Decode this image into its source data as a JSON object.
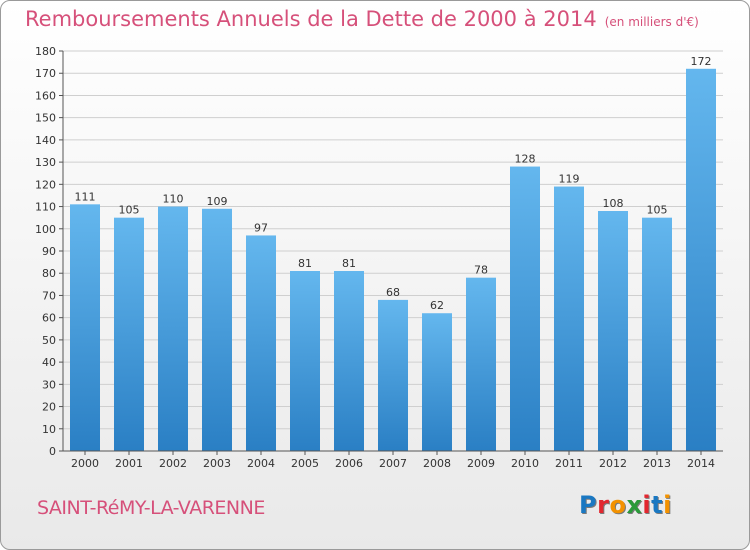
{
  "title": "Remboursements Annuels de la Dette de 2000 à 2014",
  "unit_note": "(en milliers d'€)",
  "commune": "SAINT-RéMY-LA-VARENNE",
  "logo": {
    "text": "Proxiti",
    "letter_colors": [
      "#1a78c2",
      "#e2272f",
      "#f39200",
      "#2a9a3a",
      "#e2272f",
      "#1a78c2",
      "#f39200"
    ]
  },
  "colors": {
    "bar_top": "#64b7ee",
    "bar_bottom": "#2a7fc4",
    "grid": "#cfcfcf",
    "axis": "#555555",
    "title": "#d6507a"
  },
  "chart_data": {
    "type": "bar",
    "categories": [
      "2000",
      "2001",
      "2002",
      "2003",
      "2004",
      "2005",
      "2006",
      "2007",
      "2008",
      "2009",
      "2010",
      "2011",
      "2012",
      "2013",
      "2014"
    ],
    "values": [
      111,
      105,
      110,
      109,
      97,
      81,
      81,
      68,
      62,
      78,
      128,
      119,
      108,
      105,
      172
    ],
    "ylim": [
      0,
      180
    ],
    "yticks": [
      0,
      10,
      20,
      30,
      40,
      50,
      60,
      70,
      80,
      90,
      100,
      110,
      120,
      130,
      140,
      150,
      160,
      170,
      180
    ],
    "grid": true,
    "data_labels": true
  }
}
